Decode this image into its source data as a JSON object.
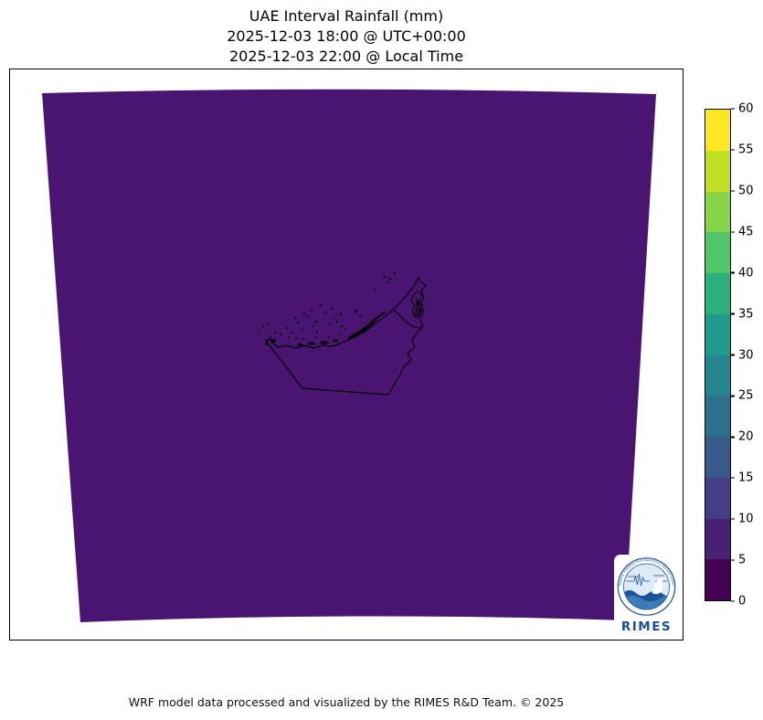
{
  "title": {
    "line1": "UAE Interval Rainfall (mm)",
    "line2": "2025-12-03 18:00 @ UTC+00:00",
    "line3": "2025-12-03 22:00 @ Local Time"
  },
  "footer": {
    "text": "WRF model data processed and visualized by the RIMES R&D Team. © 2025"
  },
  "map": {
    "fill_color": "#491570",
    "coastline_color": "#000000",
    "background": "#ffffff"
  },
  "logo": {
    "name": "RIMES",
    "ring_text": "Regional Integrated Multi-Hazard Early Warning System",
    "color": "#17529a"
  },
  "chart_data": {
    "type": "heatmap",
    "title": "UAE Interval Rainfall (mm)",
    "subtitle_utc": "2025-12-03 18:00 @ UTC+00:00",
    "subtitle_local": "2025-12-03 22:00 @ Local Time",
    "description": "WRF interval rainfall field over the UAE model domain; the entire domain is in the lowest bin (0 mm rainfall), rendered as uniform dark viridis purple with black coastline/border overlay.",
    "uniform_field_value_mm": 0,
    "legend_position": "right",
    "colorbar": {
      "orientation": "vertical",
      "range": [
        0,
        60
      ],
      "bin_size": 5,
      "ticks": [
        0,
        5,
        10,
        15,
        20,
        25,
        30,
        35,
        40,
        45,
        50,
        55,
        60
      ],
      "colors": [
        "#440154",
        "#482173",
        "#433e85",
        "#38598c",
        "#2d708e",
        "#25858e",
        "#1e9b8a",
        "#2ab07f",
        "#52c569",
        "#86d549",
        "#c2df23",
        "#fde725"
      ]
    }
  }
}
